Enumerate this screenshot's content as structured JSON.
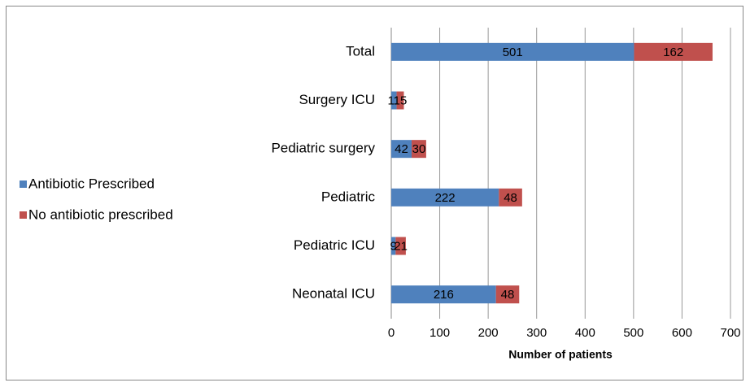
{
  "chart_data": {
    "type": "bar",
    "orientation": "horizontal",
    "stacked": true,
    "x_label": "Number of patients",
    "categories": [
      "Total",
      "Surgery ICU",
      "Pediatric surgery",
      "Pediatric",
      "Pediatric ICU",
      "Neonatal ICU"
    ],
    "series": [
      {
        "name": "Antibiotic Prescribed",
        "color": "#4f81bd",
        "values": [
          501,
          11,
          42,
          222,
          9,
          216
        ]
      },
      {
        "name": "No antibiotic prescribed",
        "color": "#c0504d",
        "values": [
          162,
          15,
          30,
          48,
          21,
          48
        ]
      }
    ],
    "xlim": [
      0,
      700
    ],
    "xticks": [
      0,
      100,
      200,
      300,
      400,
      500,
      600,
      700
    ],
    "grid": true,
    "legend": "left"
  }
}
